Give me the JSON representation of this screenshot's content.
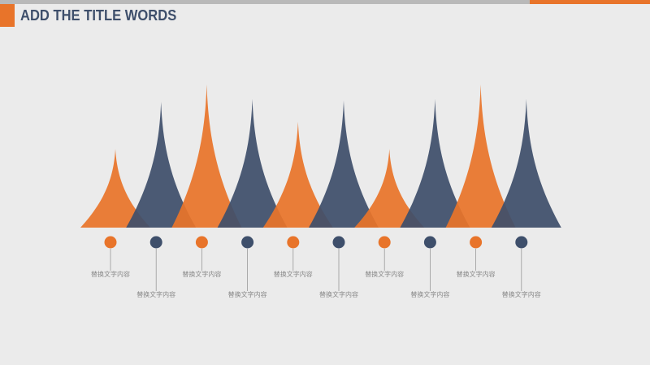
{
  "header": {
    "title": "ADD THE TITLE WORDS"
  },
  "colors": {
    "orange": "#e8742a",
    "navy": "#3e4f6b"
  },
  "chart_data": {
    "type": "area",
    "title": "ADD THE TITLE WORDS",
    "xlabel": "",
    "ylabel": "",
    "grid": false,
    "legend": "none",
    "ylim": [
      0,
      100
    ],
    "peaks": [
      {
        "value": 55,
        "color": "orange",
        "label": "替换文字内容"
      },
      {
        "value": 88,
        "color": "navy",
        "label": "替换文字内容"
      },
      {
        "value": 100,
        "color": "orange",
        "label": "替换文字内容"
      },
      {
        "value": 90,
        "color": "navy",
        "label": "替换文字内容"
      },
      {
        "value": 74,
        "color": "orange",
        "label": "替换文字内容"
      },
      {
        "value": 89,
        "color": "navy",
        "label": "替换文字内容"
      },
      {
        "value": 55,
        "color": "orange",
        "label": "替换文字内容"
      },
      {
        "value": 90,
        "color": "navy",
        "label": "替换文字内容"
      },
      {
        "value": 100,
        "color": "orange",
        "label": "替换文字内容"
      },
      {
        "value": 90,
        "color": "navy",
        "label": "替换文字内容"
      }
    ]
  }
}
